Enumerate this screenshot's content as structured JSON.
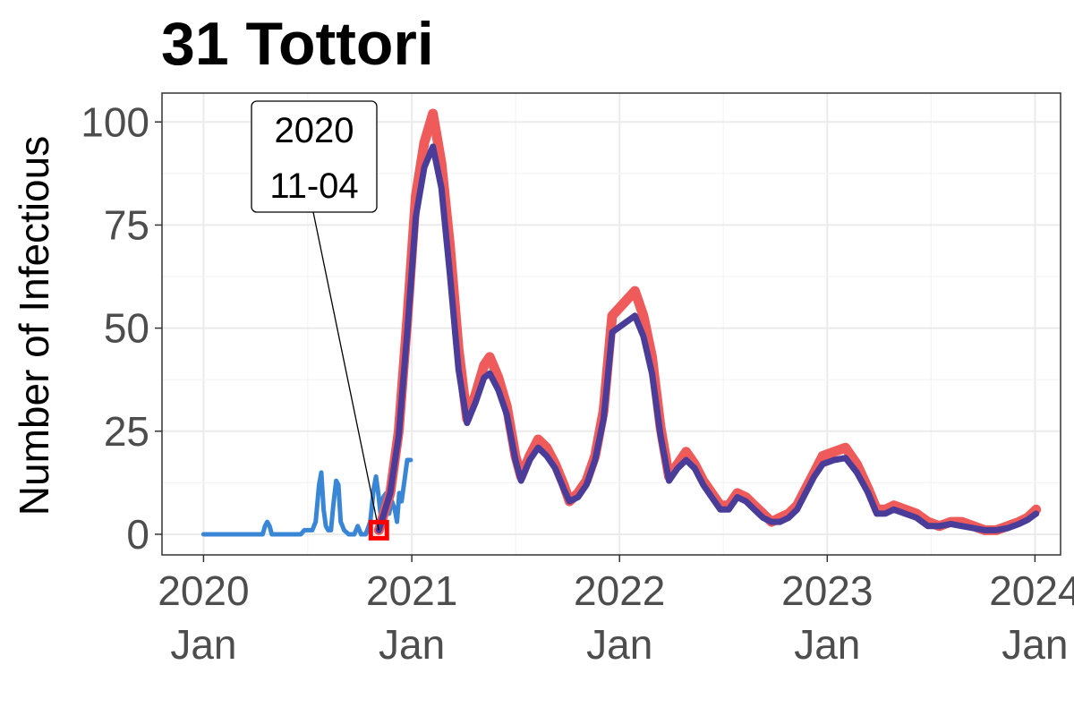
{
  "chart_data": {
    "type": "line",
    "title": "31 Tottori",
    "xlabel": "",
    "ylabel": "Number of Infectious",
    "x_axis": {
      "type": "date",
      "range": [
        "2019-10-20",
        "2024-02-15"
      ],
      "ticks": [
        {
          "date": "2020-01-01",
          "line1": "2020",
          "line2": "Jan"
        },
        {
          "date": "2021-01-01",
          "line1": "2021",
          "line2": "Jan"
        },
        {
          "date": "2022-01-01",
          "line1": "2022",
          "line2": "Jan"
        },
        {
          "date": "2023-01-01",
          "line1": "2023",
          "line2": "Jan"
        },
        {
          "date": "2024-01-01",
          "line1": "2024",
          "line2": "Jan"
        }
      ]
    },
    "y_axis": {
      "range": [
        -5,
        107
      ],
      "ticks": [
        0,
        25,
        50,
        75,
        100
      ]
    },
    "grid": true,
    "legend": "none",
    "annotation": {
      "date": "2020-11-04",
      "value": 1,
      "line1": "2020",
      "line2": "11-04",
      "marker_color": "#ff0000"
    },
    "series": [
      {
        "color": "#3a86d6",
        "points": [
          [
            "2020-01-01",
            0
          ],
          [
            "2020-04-14",
            0
          ],
          [
            "2020-04-18",
            2
          ],
          [
            "2020-04-22",
            3
          ],
          [
            "2020-04-26",
            2
          ],
          [
            "2020-04-30",
            0
          ],
          [
            "2020-06-20",
            0
          ],
          [
            "2020-06-26",
            1
          ],
          [
            "2020-07-04",
            1
          ],
          [
            "2020-07-10",
            1
          ],
          [
            "2020-07-16",
            3
          ],
          [
            "2020-07-22",
            12
          ],
          [
            "2020-07-26",
            15
          ],
          [
            "2020-07-30",
            6
          ],
          [
            "2020-08-03",
            2
          ],
          [
            "2020-08-07",
            1
          ],
          [
            "2020-08-12",
            1
          ],
          [
            "2020-08-16",
            7
          ],
          [
            "2020-08-21",
            13
          ],
          [
            "2020-08-25",
            12
          ],
          [
            "2020-08-29",
            3
          ],
          [
            "2020-09-04",
            1
          ],
          [
            "2020-09-12",
            0
          ],
          [
            "2020-09-22",
            0
          ],
          [
            "2020-09-28",
            2
          ],
          [
            "2020-10-04",
            0
          ],
          [
            "2020-10-12",
            0
          ],
          [
            "2020-10-20",
            3
          ],
          [
            "2020-10-26",
            11
          ],
          [
            "2020-10-30",
            14
          ],
          [
            "2020-11-03",
            10
          ],
          [
            "2020-11-07",
            5
          ],
          [
            "2020-11-12",
            9
          ],
          [
            "2020-11-17",
            10
          ],
          [
            "2020-11-22",
            5
          ],
          [
            "2020-11-27",
            8
          ],
          [
            "2020-12-02",
            6
          ],
          [
            "2020-12-06",
            3
          ],
          [
            "2020-12-10",
            10
          ],
          [
            "2020-12-14",
            8
          ],
          [
            "2020-12-19",
            13
          ],
          [
            "2020-12-24",
            18
          ],
          [
            "2020-12-30",
            18
          ]
        ]
      },
      {
        "color": "#ef5a5a",
        "points": [
          [
            "2020-11-04",
            1
          ],
          [
            "2020-11-24",
            10
          ],
          [
            "2020-12-09",
            25
          ],
          [
            "2020-12-24",
            52
          ],
          [
            "2021-01-08",
            82
          ],
          [
            "2021-01-23",
            95
          ],
          [
            "2021-02-07",
            102
          ],
          [
            "2021-02-22",
            90
          ],
          [
            "2021-03-09",
            70
          ],
          [
            "2021-03-24",
            45
          ],
          [
            "2021-04-08",
            28
          ],
          [
            "2021-04-23",
            34
          ],
          [
            "2021-05-08",
            41
          ],
          [
            "2021-05-18",
            43
          ],
          [
            "2021-06-02",
            38
          ],
          [
            "2021-06-17",
            31
          ],
          [
            "2021-07-02",
            19
          ],
          [
            "2021-07-12",
            14
          ],
          [
            "2021-07-27",
            19
          ],
          [
            "2021-08-11",
            23
          ],
          [
            "2021-08-26",
            21
          ],
          [
            "2021-09-10",
            17
          ],
          [
            "2021-09-25",
            12
          ],
          [
            "2021-10-05",
            8
          ],
          [
            "2021-10-20",
            10
          ],
          [
            "2021-11-04",
            13
          ],
          [
            "2021-11-19",
            19
          ],
          [
            "2021-12-04",
            30
          ],
          [
            "2021-12-19",
            53
          ],
          [
            "2022-01-08",
            56
          ],
          [
            "2022-01-28",
            59
          ],
          [
            "2022-02-12",
            53
          ],
          [
            "2022-02-27",
            43
          ],
          [
            "2022-03-14",
            26
          ],
          [
            "2022-03-29",
            14
          ],
          [
            "2022-04-13",
            17
          ],
          [
            "2022-04-28",
            20
          ],
          [
            "2022-05-13",
            17
          ],
          [
            "2022-05-28",
            13
          ],
          [
            "2022-06-12",
            10
          ],
          [
            "2022-06-27",
            7
          ],
          [
            "2022-07-12",
            7
          ],
          [
            "2022-07-27",
            10
          ],
          [
            "2022-08-11",
            9
          ],
          [
            "2022-08-26",
            7
          ],
          [
            "2022-09-10",
            5
          ],
          [
            "2022-09-25",
            3
          ],
          [
            "2022-10-10",
            4
          ],
          [
            "2022-10-25",
            5
          ],
          [
            "2022-11-09",
            7
          ],
          [
            "2022-11-24",
            11
          ],
          [
            "2022-12-09",
            15
          ],
          [
            "2022-12-24",
            19
          ],
          [
            "2023-01-13",
            20
          ],
          [
            "2023-02-02",
            21
          ],
          [
            "2023-02-22",
            17
          ],
          [
            "2023-03-14",
            11
          ],
          [
            "2023-03-29",
            6
          ],
          [
            "2023-04-13",
            6
          ],
          [
            "2023-04-28",
            7
          ],
          [
            "2023-05-18",
            6
          ],
          [
            "2023-06-07",
            5
          ],
          [
            "2023-06-27",
            3
          ],
          [
            "2023-07-17",
            2
          ],
          [
            "2023-08-06",
            3
          ],
          [
            "2023-08-26",
            3
          ],
          [
            "2023-09-15",
            2
          ],
          [
            "2023-10-05",
            1
          ],
          [
            "2023-10-25",
            1
          ],
          [
            "2023-11-14",
            2
          ],
          [
            "2023-12-04",
            3
          ],
          [
            "2023-12-19",
            4
          ],
          [
            "2024-01-03",
            6
          ]
        ]
      },
      {
        "color": "#4a3d9a",
        "points": [
          [
            "2020-11-04",
            1
          ],
          [
            "2020-11-24",
            10
          ],
          [
            "2020-12-09",
            24
          ],
          [
            "2020-12-24",
            49
          ],
          [
            "2021-01-08",
            77
          ],
          [
            "2021-01-23",
            89
          ],
          [
            "2021-02-07",
            94
          ],
          [
            "2021-02-22",
            84
          ],
          [
            "2021-03-09",
            63
          ],
          [
            "2021-03-24",
            40
          ],
          [
            "2021-04-08",
            27
          ],
          [
            "2021-04-23",
            32
          ],
          [
            "2021-05-08",
            38
          ],
          [
            "2021-05-18",
            39
          ],
          [
            "2021-06-02",
            35
          ],
          [
            "2021-06-17",
            29
          ],
          [
            "2021-07-02",
            18
          ],
          [
            "2021-07-12",
            13
          ],
          [
            "2021-07-27",
            18
          ],
          [
            "2021-08-11",
            21
          ],
          [
            "2021-08-26",
            19
          ],
          [
            "2021-09-10",
            16
          ],
          [
            "2021-09-25",
            11
          ],
          [
            "2021-10-05",
            8
          ],
          [
            "2021-10-20",
            9
          ],
          [
            "2021-11-04",
            12
          ],
          [
            "2021-11-19",
            18
          ],
          [
            "2021-12-04",
            28
          ],
          [
            "2021-12-19",
            49
          ],
          [
            "2022-01-08",
            51
          ],
          [
            "2022-01-28",
            53
          ],
          [
            "2022-02-12",
            48
          ],
          [
            "2022-02-27",
            39
          ],
          [
            "2022-03-14",
            24
          ],
          [
            "2022-03-29",
            13
          ],
          [
            "2022-04-13",
            16
          ],
          [
            "2022-04-28",
            18
          ],
          [
            "2022-05-13",
            16
          ],
          [
            "2022-05-28",
            12
          ],
          [
            "2022-06-12",
            9
          ],
          [
            "2022-06-27",
            6
          ],
          [
            "2022-07-12",
            6
          ],
          [
            "2022-07-27",
            9
          ],
          [
            "2022-08-11",
            8
          ],
          [
            "2022-08-26",
            6
          ],
          [
            "2022-09-10",
            4
          ],
          [
            "2022-09-25",
            3
          ],
          [
            "2022-10-10",
            3
          ],
          [
            "2022-10-25",
            4
          ],
          [
            "2022-11-09",
            6
          ],
          [
            "2022-11-24",
            10
          ],
          [
            "2022-12-09",
            14
          ],
          [
            "2022-12-24",
            17
          ],
          [
            "2023-01-13",
            18
          ],
          [
            "2023-02-02",
            18.5
          ],
          [
            "2023-02-22",
            15
          ],
          [
            "2023-03-14",
            10
          ],
          [
            "2023-03-29",
            5
          ],
          [
            "2023-04-13",
            5
          ],
          [
            "2023-04-28",
            6
          ],
          [
            "2023-05-18",
            5
          ],
          [
            "2023-06-07",
            4
          ],
          [
            "2023-06-27",
            2
          ],
          [
            "2023-07-17",
            2
          ],
          [
            "2023-08-06",
            2.5
          ],
          [
            "2023-08-26",
            2
          ],
          [
            "2023-09-15",
            1.5
          ],
          [
            "2023-10-05",
            1
          ],
          [
            "2023-10-25",
            1
          ],
          [
            "2023-11-14",
            1.5
          ],
          [
            "2023-12-04",
            2.5
          ],
          [
            "2023-12-19",
            3.5
          ],
          [
            "2024-01-03",
            5
          ]
        ]
      }
    ]
  }
}
